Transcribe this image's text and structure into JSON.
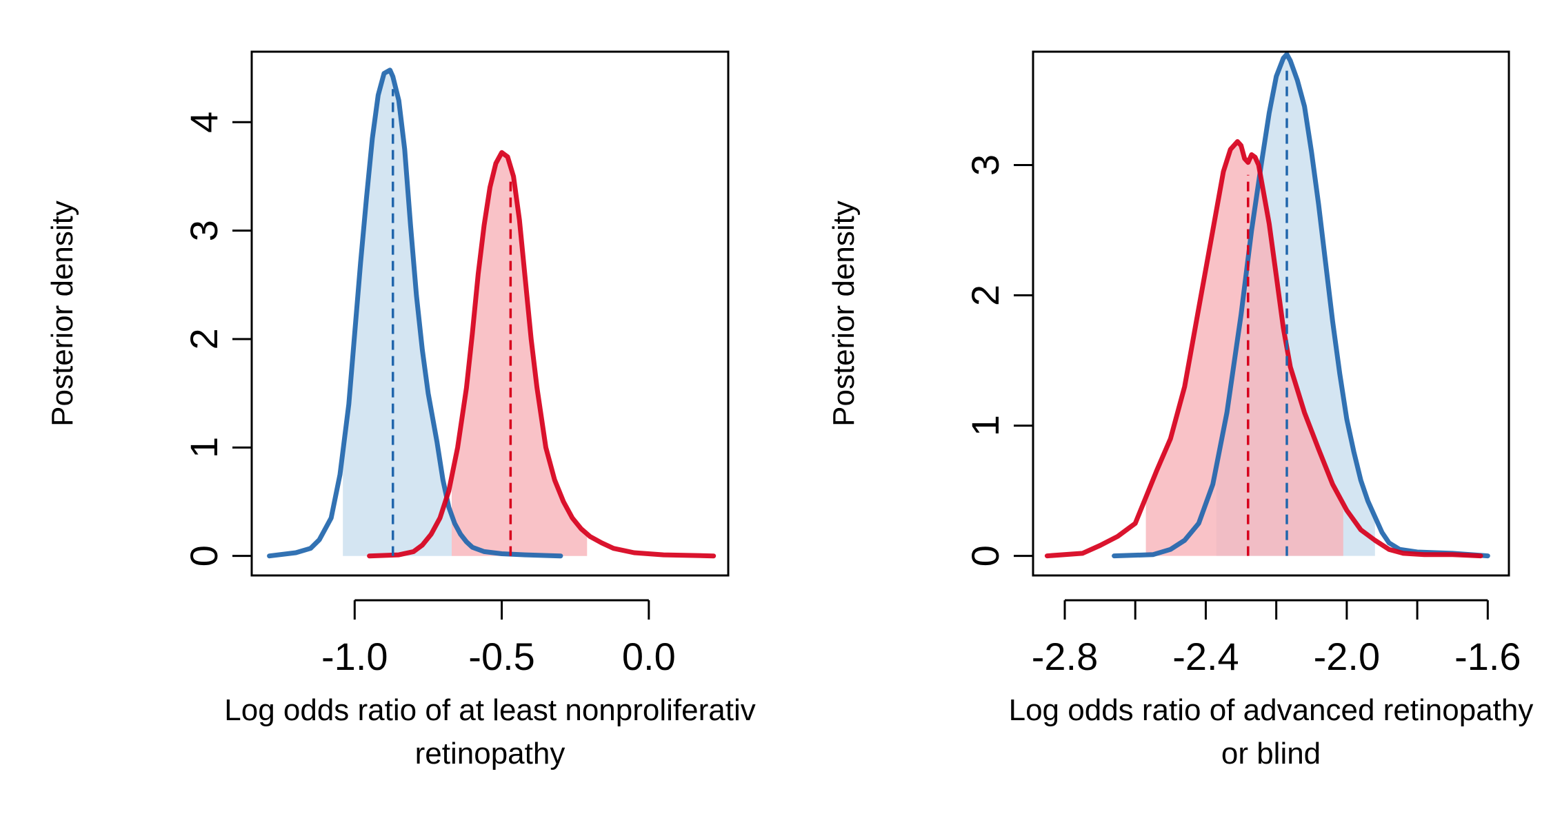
{
  "colors": {
    "blue_line": "#2166ac",
    "blue_fill": "#c9dfef",
    "red_line": "#d7001c",
    "red_fill": "#f7b3b9"
  },
  "chart_data": [
    {
      "type": "density",
      "xlabel_lines": [
        "Log odds ratio of at least nonproliferativ",
        "retinopathy"
      ],
      "ylabel": "Posterior density",
      "xlim": [
        -1.35,
        0.27
      ],
      "ylim": [
        -0.18,
        4.65
      ],
      "xticks": [
        -1.0,
        -0.5,
        0.0
      ],
      "xtick_labels": [
        "-1.0",
        "-0.5",
        "0.0"
      ],
      "yticks": [
        0,
        1,
        2,
        3,
        4
      ],
      "ytick_labels": [
        "0",
        "1",
        "2",
        "3",
        "4"
      ],
      "series": [
        {
          "name": "blue",
          "color": "blue",
          "mean": -0.87,
          "interval": [
            -1.04,
            -0.67
          ],
          "x": [
            -1.29,
            -1.2,
            -1.15,
            -1.12,
            -1.08,
            -1.05,
            -1.02,
            -1.0,
            -0.98,
            -0.96,
            -0.94,
            -0.92,
            -0.9,
            -0.88,
            -0.87,
            -0.85,
            -0.83,
            -0.81,
            -0.79,
            -0.77,
            -0.75,
            -0.72,
            -0.7,
            -0.68,
            -0.66,
            -0.64,
            -0.62,
            -0.6,
            -0.56,
            -0.5,
            -0.42,
            -0.3
          ],
          "y": [
            0.0,
            0.03,
            0.07,
            0.15,
            0.35,
            0.75,
            1.4,
            2.05,
            2.7,
            3.3,
            3.85,
            4.25,
            4.45,
            4.48,
            4.42,
            4.2,
            3.75,
            3.05,
            2.4,
            1.9,
            1.5,
            1.05,
            0.7,
            0.45,
            0.3,
            0.2,
            0.13,
            0.08,
            0.04,
            0.02,
            0.01,
            0.0
          ]
        },
        {
          "name": "red",
          "color": "red",
          "mean": -0.47,
          "interval": [
            -0.67,
            -0.21
          ],
          "x": [
            -0.95,
            -0.85,
            -0.8,
            -0.77,
            -0.74,
            -0.71,
            -0.68,
            -0.65,
            -0.62,
            -0.6,
            -0.58,
            -0.56,
            -0.54,
            -0.52,
            -0.5,
            -0.48,
            -0.46,
            -0.44,
            -0.42,
            -0.4,
            -0.38,
            -0.35,
            -0.32,
            -0.29,
            -0.26,
            -0.23,
            -0.2,
            -0.16,
            -0.12,
            -0.05,
            0.05,
            0.22
          ],
          "y": [
            0.0,
            0.01,
            0.04,
            0.1,
            0.2,
            0.35,
            0.6,
            1.0,
            1.55,
            2.05,
            2.6,
            3.05,
            3.4,
            3.62,
            3.72,
            3.68,
            3.5,
            3.1,
            2.55,
            2.0,
            1.55,
            1.0,
            0.7,
            0.5,
            0.35,
            0.25,
            0.18,
            0.12,
            0.07,
            0.03,
            0.01,
            0.0
          ]
        }
      ]
    },
    {
      "type": "density",
      "xlabel_lines": [
        "Log odds ratio of advanced retinopathy",
        "or blind"
      ],
      "ylabel": "Posterior density",
      "xlim": [
        -2.89,
        -1.54
      ],
      "ylim": [
        -0.15,
        3.87
      ],
      "xticks": [
        -2.8,
        -2.6,
        -2.4,
        -2.2,
        -2.0,
        -1.8,
        -1.6
      ],
      "xtick_labels": [
        "-2.8",
        "",
        "-2.4",
        "",
        "-2.0",
        "",
        "-1.6"
      ],
      "yticks": [
        0,
        1,
        2,
        3
      ],
      "ytick_labels": [
        "0",
        "1",
        "2",
        "3"
      ],
      "series": [
        {
          "name": "blue",
          "color": "blue",
          "mean": -2.17,
          "interval": [
            -2.37,
            -1.92
          ],
          "x": [
            -2.66,
            -2.55,
            -2.5,
            -2.46,
            -2.42,
            -2.38,
            -2.34,
            -2.3,
            -2.27,
            -2.24,
            -2.22,
            -2.2,
            -2.18,
            -2.17,
            -2.16,
            -2.14,
            -2.12,
            -2.1,
            -2.08,
            -2.06,
            -2.04,
            -2.02,
            -2.0,
            -1.98,
            -1.96,
            -1.94,
            -1.92,
            -1.9,
            -1.88,
            -1.85,
            -1.8,
            -1.7,
            -1.6
          ],
          "y": [
            0.0,
            0.01,
            0.05,
            0.12,
            0.25,
            0.55,
            1.1,
            1.85,
            2.5,
            3.05,
            3.4,
            3.68,
            3.82,
            3.85,
            3.8,
            3.65,
            3.45,
            3.1,
            2.7,
            2.25,
            1.8,
            1.4,
            1.05,
            0.8,
            0.58,
            0.42,
            0.3,
            0.18,
            0.1,
            0.05,
            0.03,
            0.02,
            0.0
          ]
        },
        {
          "name": "red",
          "color": "red",
          "mean": -2.28,
          "interval": [
            -2.57,
            -2.01
          ],
          "x": [
            -2.85,
            -2.75,
            -2.7,
            -2.65,
            -2.6,
            -2.57,
            -2.54,
            -2.5,
            -2.46,
            -2.42,
            -2.38,
            -2.35,
            -2.33,
            -2.31,
            -2.3,
            -2.29,
            -2.28,
            -2.27,
            -2.26,
            -2.25,
            -2.24,
            -2.22,
            -2.2,
            -2.18,
            -2.16,
            -2.12,
            -2.08,
            -2.04,
            -2.0,
            -1.96,
            -1.92,
            -1.88,
            -1.84,
            -1.78,
            -1.7,
            -1.62
          ],
          "y": [
            0.0,
            0.02,
            0.08,
            0.15,
            0.25,
            0.45,
            0.65,
            0.9,
            1.3,
            1.9,
            2.5,
            2.95,
            3.12,
            3.18,
            3.15,
            3.05,
            3.02,
            3.08,
            3.06,
            3.0,
            2.85,
            2.55,
            2.15,
            1.75,
            1.45,
            1.1,
            0.82,
            0.55,
            0.35,
            0.2,
            0.12,
            0.05,
            0.02,
            0.01,
            0.01,
            0.0
          ]
        }
      ]
    }
  ]
}
